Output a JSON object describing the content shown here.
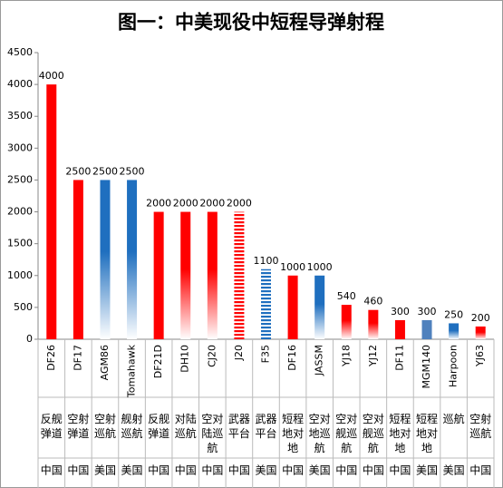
{
  "chart_data": {
    "type": "bar",
    "title": "图一：中美现役中短程导弹射程",
    "categories": [
      "DF26",
      "DF17",
      "AGM86",
      "Tomahawk",
      "DF21D",
      "DH10",
      "CJ20",
      "J20",
      "F35",
      "DF16",
      "JASSM",
      "YJ18",
      "YJ12",
      "DF11",
      "MGM140",
      "Harpoon",
      "YJ63"
    ],
    "values": [
      4000,
      2500,
      2500,
      2500,
      2000,
      2000,
      2000,
      2000,
      1100,
      1000,
      1000,
      540,
      460,
      300,
      300,
      250,
      200
    ],
    "kinds": [
      "反舰弹道",
      "空射弹道",
      "空射巡航",
      "舰射巡航",
      "反舰弹道",
      "对陆巡航",
      "空对陆巡航",
      "武器平台",
      "武器平台",
      "短程地对地",
      "空对地巡航",
      "空对舰巡航",
      "空对舰巡航",
      "短程地对地",
      "短程地对地",
      "巡航",
      "空射巡航"
    ],
    "countries": [
      "中国",
      "中国",
      "美国",
      "美国",
      "中国",
      "中国",
      "中国",
      "中国",
      "美国",
      "中国",
      "美国",
      "中国",
      "中国",
      "中国",
      "美国",
      "美国",
      "中国"
    ],
    "colors": [
      "#ff0000",
      "#ff0000",
      "#1f6fbf",
      "#1f6fbf",
      "#ff0000",
      "#ff0000",
      "#ff0000",
      "#ff0000",
      "#1f6fbf",
      "#ff0000",
      "#1f6fbf",
      "#ff0000",
      "#ff0000",
      "#ff0000",
      "#4f81bd",
      "#1f6fbf",
      "#ff0000"
    ],
    "fills": [
      "solid",
      "solid",
      "gradient",
      "gradient",
      "solid",
      "gradient",
      "gradient",
      "stripes",
      "stripes",
      "solid",
      "gradient",
      "gradient",
      "gradient",
      "solid",
      "solid",
      "gradient",
      "gradient"
    ],
    "ylim": [
      0,
      4500
    ],
    "yticks": [
      0,
      500,
      1000,
      1500,
      2000,
      2500,
      3000,
      3500,
      4000,
      4500
    ],
    "grid": false
  }
}
